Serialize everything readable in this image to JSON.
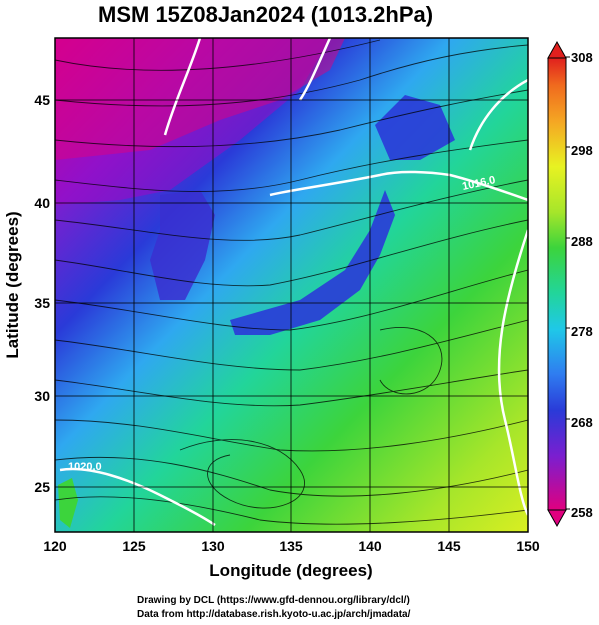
{
  "title": "MSM 15Z08Jan2024 (1013.2hPa)",
  "x_axis": {
    "label": "Longitude (degrees)",
    "ticks": [
      "120",
      "125",
      "130",
      "135",
      "140",
      "145",
      "150"
    ],
    "range": [
      120,
      150
    ]
  },
  "y_axis": {
    "label": "Latitude  (degrees)",
    "ticks": [
      "25",
      "30",
      "35",
      "40",
      "45"
    ],
    "range": [
      22.4,
      47.6
    ]
  },
  "colorbar": {
    "ticks": [
      "258",
      "268",
      "278",
      "288",
      "298",
      "308"
    ],
    "range": [
      258,
      308
    ],
    "colors": [
      "#e0007f",
      "#7a1fd0",
      "#2a3ad8",
      "#2f7cf0",
      "#1fc8e8",
      "#22d59a",
      "#3cd43c",
      "#a7e62a",
      "#e8f222",
      "#f5a623",
      "#f06a1e",
      "#e0201e"
    ]
  },
  "contour_labels": [
    "1020.0",
    "1016.0"
  ],
  "credits": {
    "line1": "Drawing by DCL (https://www.gfd-dennou.org/library/dcl/)",
    "line2": "Data from http://database.rish.kyoto-u.ac.jp/arch/jmadata/"
  }
}
